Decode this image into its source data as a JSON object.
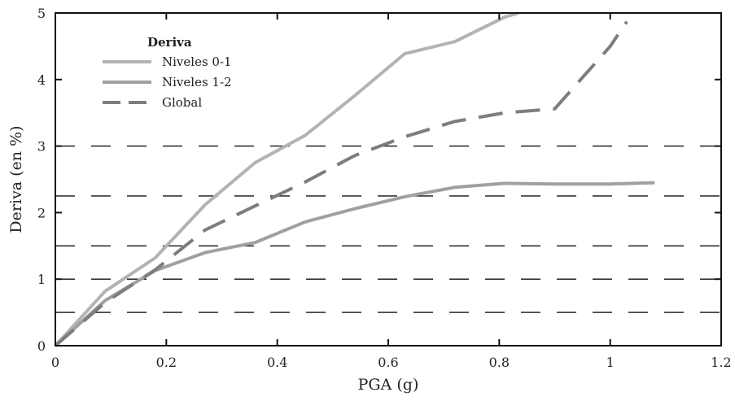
{
  "chart_data": {
    "type": "line",
    "xlabel": "PGA (g)",
    "ylabel": "Deriva (en %)",
    "xlim": [
      0,
      1.2
    ],
    "ylim": [
      0,
      5
    ],
    "xticks": [
      0,
      0.2,
      0.4,
      0.6,
      0.8,
      1,
      1.2
    ],
    "xtick_labels": [
      "0",
      "0.2",
      "0.4",
      "0.6",
      "0.8",
      "1",
      "1.2"
    ],
    "yticks": [
      0,
      1,
      2,
      3,
      4,
      5
    ],
    "ytick_labels": [
      "0",
      "1",
      "2",
      "3",
      "4",
      "5"
    ],
    "legend": {
      "title": "Deriva",
      "placement": "top-left"
    },
    "series": [
      {
        "name": "Niveles 0-1",
        "color": "#b3b3b3",
        "dash": "solid",
        "x": [
          0,
          0.09,
          0.18,
          0.27,
          0.36,
          0.45,
          0.54,
          0.63,
          0.72,
          0.81,
          0.835
        ],
        "y": [
          0,
          0.82,
          1.32,
          2.12,
          2.75,
          3.16,
          3.76,
          4.39,
          4.57,
          4.94,
          5.0
        ]
      },
      {
        "name": "Niveles 1-2",
        "color": "#a0a0a0",
        "dash": "solid",
        "x": [
          0,
          0.09,
          0.18,
          0.27,
          0.36,
          0.45,
          0.54,
          0.63,
          0.72,
          0.81,
          0.9,
          1.0,
          1.08
        ],
        "y": [
          0,
          0.68,
          1.13,
          1.4,
          1.55,
          1.86,
          2.06,
          2.24,
          2.38,
          2.44,
          2.43,
          2.43,
          2.45
        ]
      },
      {
        "name": "Global",
        "color": "#7d7d7d",
        "dash": "dashed",
        "x": [
          0,
          0.09,
          0.18,
          0.27,
          0.36,
          0.45,
          0.54,
          0.63,
          0.72,
          0.81,
          0.9,
          1.0,
          1.03
        ],
        "y": [
          0,
          0.65,
          1.14,
          1.74,
          2.1,
          2.46,
          2.86,
          3.14,
          3.37,
          3.5,
          3.56,
          4.5,
          4.87
        ]
      }
    ],
    "reference_lines": [
      {
        "y": 0.5,
        "style": "dashed",
        "color": "#111111"
      },
      {
        "y": 1,
        "style": "dashed",
        "color": "#111111"
      },
      {
        "y": 1.5,
        "style": "dashed",
        "color": "#111111"
      },
      {
        "y": 2.25,
        "style": "dashed",
        "color": "#111111"
      },
      {
        "y": 3,
        "style": "dashed",
        "color": "#111111"
      }
    ]
  }
}
